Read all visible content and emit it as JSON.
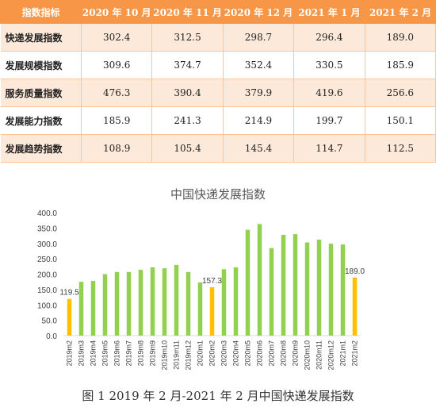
{
  "table": {
    "headers": [
      "指数指标",
      "2020 年 10 月",
      "2020 年 11 月",
      "2020 年 12 月",
      "2021 年 1 月",
      "2021 年 2 月"
    ],
    "rows": [
      {
        "label": "快递发展指数",
        "values": [
          "302.4",
          "312.5",
          "298.7",
          "296.4",
          "189.0"
        ]
      },
      {
        "label": "发展规模指数",
        "values": [
          "309.6",
          "374.7",
          "352.4",
          "330.5",
          "185.9"
        ]
      },
      {
        "label": "服务质量指数",
        "values": [
          "476.3",
          "390.4",
          "379.9",
          "419.6",
          "256.6"
        ]
      },
      {
        "label": "发展能力指数",
        "values": [
          "185.9",
          "241.3",
          "214.9",
          "199.7",
          "150.1"
        ]
      },
      {
        "label": "发展趋势指数",
        "values": [
          "108.9",
          "105.4",
          "145.4",
          "114.7",
          "112.5"
        ]
      }
    ]
  },
  "chart_data": {
    "type": "bar",
    "title": "中国快递发展指数",
    "categories": [
      "2019m2",
      "2019m3",
      "2019m4",
      "2019m5",
      "2019m6",
      "2019m7",
      "2019m8",
      "2019m9",
      "2019m10",
      "2019m11",
      "2019m12",
      "2020m1",
      "2020m2",
      "2020m3",
      "2020m4",
      "2020m5",
      "2020m6",
      "2020m7",
      "2020m8",
      "2020m9",
      "2020m10",
      "2020m11",
      "2020m12",
      "2021m1",
      "2021m2"
    ],
    "values": [
      119.5,
      175,
      178,
      200,
      207,
      207,
      214,
      222,
      219,
      230,
      207,
      173,
      157.3,
      216,
      222,
      344,
      363,
      285,
      328,
      330,
      303,
      312,
      299,
      296.4,
      189.0
    ],
    "highlighted_categories": [
      "2019m2",
      "2020m2",
      "2021m2"
    ],
    "data_labels": {
      "2019m2": "119.5",
      "2020m2": "157.3",
      "2021m2": "189.0"
    },
    "ylim": [
      0,
      400
    ],
    "yticks": [
      "0.0",
      "50.0",
      "100.0",
      "150.0",
      "200.0",
      "250.0",
      "300.0",
      "350.0",
      "400.0"
    ],
    "colors": {
      "default": "#92d050",
      "highlight": "#ffc000"
    },
    "grid": false,
    "legend": "none"
  },
  "caption": "图 1 2019 年 2 月-2021 年 2 月中国快递发展指数"
}
